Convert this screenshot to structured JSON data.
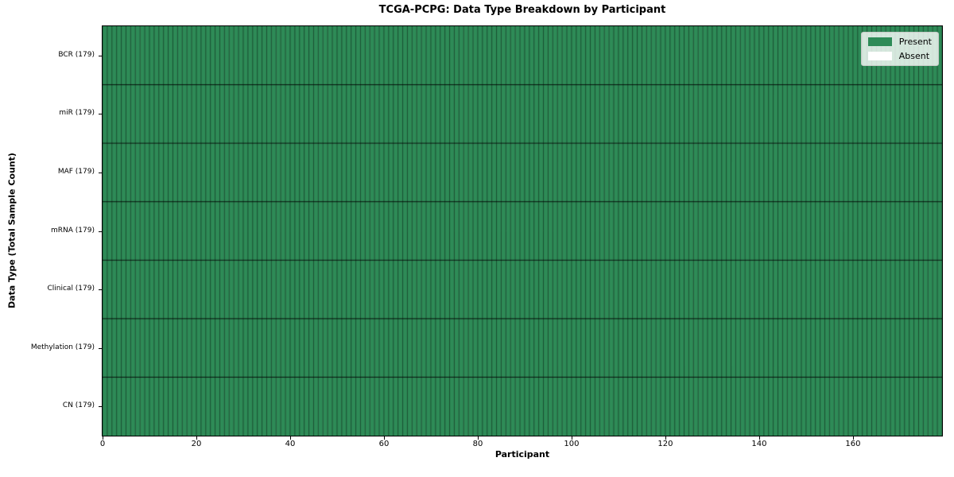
{
  "chart_data": {
    "type": "heatmap",
    "title": "TCGA-PCPG: Data Type Breakdown by Participant",
    "xlabel": "Participant",
    "ylabel": "Data Type (Total Sample Count)",
    "n_participants": 179,
    "x_range": [
      0,
      179
    ],
    "x_ticks": [
      0,
      20,
      40,
      60,
      80,
      100,
      120,
      140,
      160
    ],
    "rows": [
      {
        "label": "BCR (179)",
        "data_type": "BCR",
        "total_sample_count": 179,
        "present_count": 179,
        "absent_count": 0
      },
      {
        "label": "miR (179)",
        "data_type": "miR",
        "total_sample_count": 179,
        "present_count": 179,
        "absent_count": 0
      },
      {
        "label": "MAF (179)",
        "data_type": "MAF",
        "total_sample_count": 179,
        "present_count": 179,
        "absent_count": 0
      },
      {
        "label": "mRNA (179)",
        "data_type": "mRNA",
        "total_sample_count": 179,
        "present_count": 179,
        "absent_count": 0
      },
      {
        "label": "Clinical (179)",
        "data_type": "Clinical",
        "total_sample_count": 179,
        "present_count": 179,
        "absent_count": 0
      },
      {
        "label": "Methylation (179)",
        "data_type": "Methylation",
        "total_sample_count": 179,
        "present_count": 179,
        "absent_count": 0
      },
      {
        "label": "CN (179)",
        "data_type": "CN",
        "total_sample_count": 179,
        "present_count": 179,
        "absent_count": 0
      }
    ],
    "legend": {
      "position": "upper right",
      "entries": [
        {
          "label": "Present",
          "color": "#2e8b57"
        },
        {
          "label": "Absent",
          "color": "#ffffff"
        }
      ]
    },
    "colors": {
      "present": "#2e8b57",
      "absent": "#ffffff",
      "cell_edge": "rgba(0,0,0,0.55)",
      "row_divider": "rgba(0,0,0,0.85)",
      "plot_border": "#000000"
    },
    "grid": "cell-borders",
    "legend_visible": true
  }
}
